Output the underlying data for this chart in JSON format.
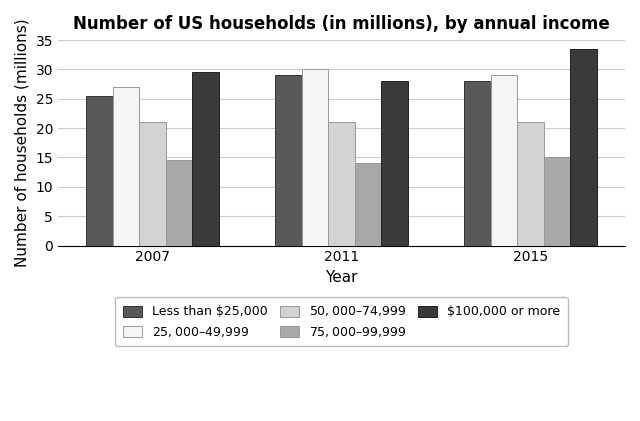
{
  "title": "Number of US households (in millions), by annual income",
  "xlabel": "Year",
  "ylabel": "Number of households (millions)",
  "years": [
    "2007",
    "2011",
    "2015"
  ],
  "categories": [
    "Less than $25,000",
    "$25,000–$49,999",
    "$50,000–$74,999",
    "$75,000–$99,999",
    "$100,000 or more"
  ],
  "values": [
    [
      25.5,
      29.0,
      28.0
    ],
    [
      27.0,
      30.0,
      29.0
    ],
    [
      21.0,
      21.0,
      21.0
    ],
    [
      14.5,
      14.0,
      15.0
    ],
    [
      29.5,
      28.0,
      33.5
    ]
  ],
  "colors": [
    "#595959",
    "#f5f5f5",
    "#d3d3d3",
    "#a8a8a8",
    "#3a3a3a"
  ],
  "edgecolors": [
    "#333333",
    "#999999",
    "#999999",
    "#999999",
    "#222222"
  ],
  "ylim": [
    0,
    35
  ],
  "yticks": [
    0,
    5,
    10,
    15,
    20,
    25,
    30,
    35
  ],
  "bar_width": 0.14,
  "title_fontsize": 12,
  "axis_label_fontsize": 11,
  "tick_fontsize": 10,
  "legend_fontsize": 9
}
